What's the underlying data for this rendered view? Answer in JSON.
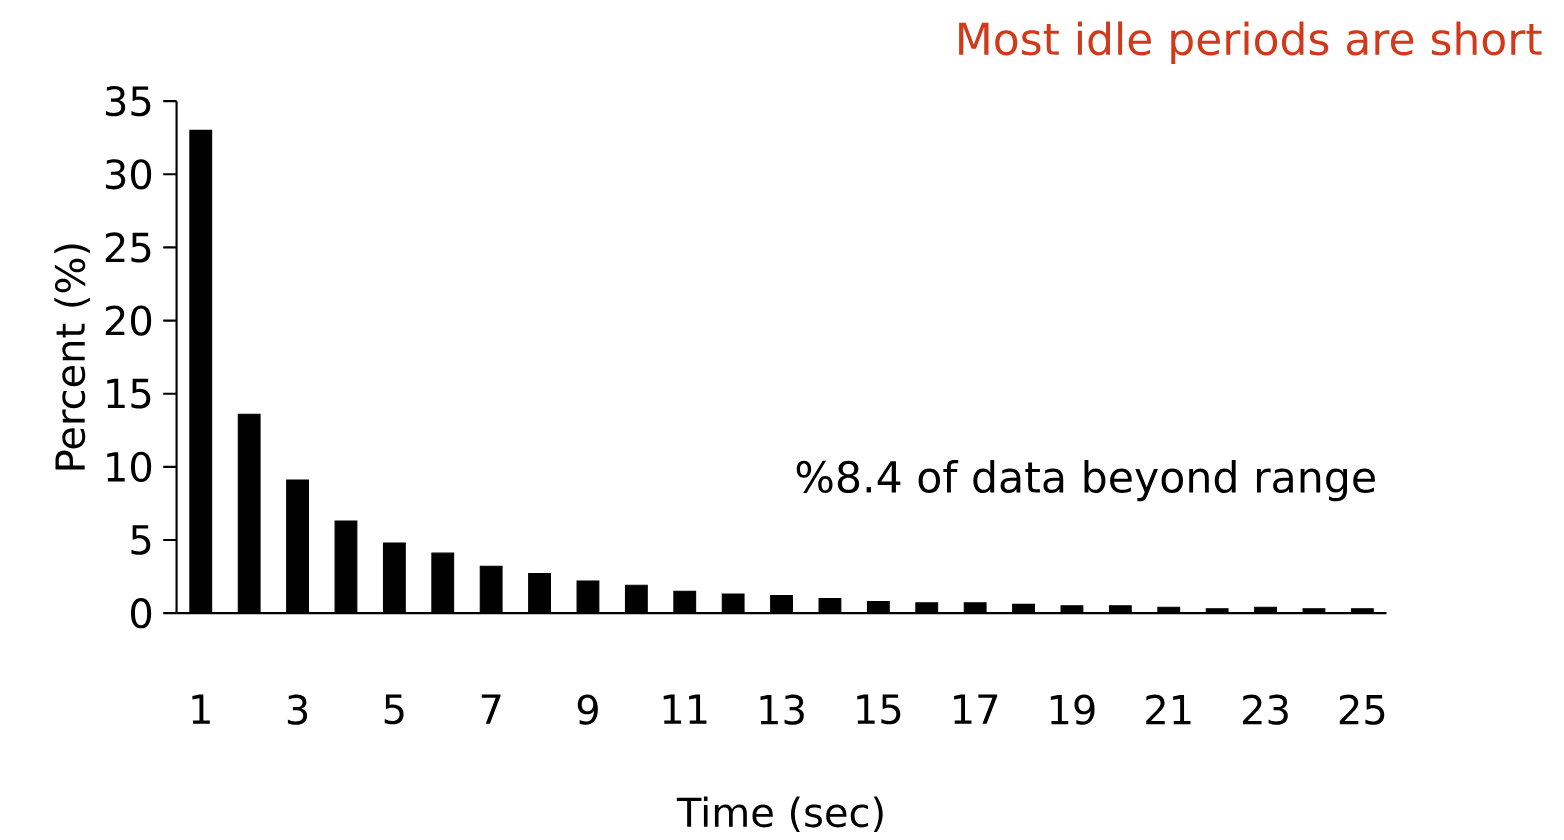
{
  "chart_data": {
    "type": "bar",
    "title": "Most idle periods are short",
    "xlabel": "Time (sec)",
    "ylabel": "Percent (%)",
    "categories": [
      "1",
      null,
      "3",
      null,
      "5",
      null,
      "7",
      null,
      "9",
      null,
      "11",
      null,
      "13",
      null,
      "15",
      null,
      "17",
      null,
      "19",
      null,
      "21",
      null,
      "23",
      null,
      "25"
    ],
    "values": [
      33,
      13.6,
      9.1,
      6.3,
      4.8,
      4.1,
      3.2,
      2.7,
      2.2,
      1.9,
      1.5,
      1.3,
      1.2,
      1.0,
      0.8,
      0.7,
      0.7,
      0.6,
      0.5,
      0.5,
      0.4,
      0.3,
      0.4,
      0.3,
      0.3
    ],
    "color": "#000000",
    "ylim": [
      0,
      35
    ],
    "yticks": [
      0,
      5,
      10,
      15,
      20,
      25,
      30,
      35
    ],
    "grid": false,
    "annotations": [
      "%8.4 of data beyond range"
    ]
  }
}
